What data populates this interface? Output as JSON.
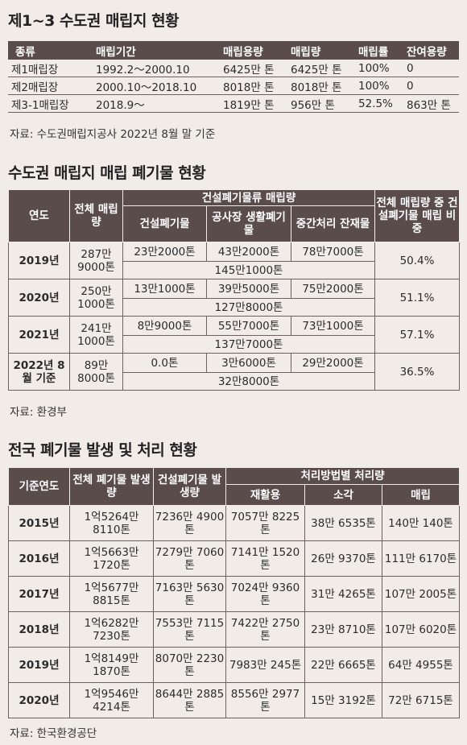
{
  "section1": {
    "title": "제1~3 수도권 매립지 현황",
    "headers": [
      "종류",
      "매립기간",
      "매립용량",
      "매립량",
      "매립률",
      "잔여용량"
    ],
    "rows": [
      [
        "제1매립장",
        "1992.2～2000.10",
        "6425만 톤",
        "6425만 톤",
        "100%",
        "0"
      ],
      [
        "제2매립장",
        "2000.10～2018.10",
        "8018만 톤",
        "8018만 톤",
        "100%",
        "0"
      ],
      [
        "제3-1매립장",
        "2018.9～",
        "1819만 톤",
        "956만 톤",
        "52.5%",
        "863만 톤"
      ]
    ],
    "source": "자료: 수도권매립지공사 2022년 8월 말 기준"
  },
  "section2": {
    "title": "수도권 매립지 매립 폐기물 현황",
    "headers": {
      "year": "연도",
      "total": "전체 매립량",
      "group": "건설폐기물류 매립량",
      "sub": [
        "건설폐기물",
        "공사장 생활폐기물",
        "중간처리 잔재물"
      ],
      "ratio": "전체 매립량 중 건설폐기물 매립 비중"
    },
    "rows": [
      {
        "year": "2019년",
        "total": "287만 9000톤",
        "c1": "23만2000톤",
        "c2": "43만2000톤",
        "c3": "78만7000톤",
        "sum": "145만1000톤",
        "ratio": "50.4%"
      },
      {
        "year": "2020년",
        "total": "250만 1000톤",
        "c1": "13만1000톤",
        "c2": "39만5000톤",
        "c3": "75만2000톤",
        "sum": "127만8000톤",
        "ratio": "51.1%"
      },
      {
        "year": "2021년",
        "total": "241만 1000톤",
        "c1": "8만9000톤",
        "c2": "55만7000톤",
        "c3": "73만1000톤",
        "sum": "137만7000톤",
        "ratio": "57.1%"
      },
      {
        "year": "2022년 8월 기준",
        "total": "89만 8000톤",
        "c1": "0.0톤",
        "c2": "3만6000톤",
        "c3": "29만2000톤",
        "sum": "32만8000톤",
        "ratio": "36.5%"
      }
    ],
    "source": "자료: 환경부"
  },
  "section3": {
    "title": "전국 폐기물 발생 및 처리 현황",
    "headers": {
      "year": "기준연도",
      "total": "전체 폐기물 발생량",
      "construction": "건설폐기물 발생량",
      "group": "처리방법별 처리량",
      "sub": [
        "재활용",
        "소각",
        "매립"
      ]
    },
    "rows": [
      {
        "year": "2015년",
        "total": "1억5264만 8110톤",
        "cons": "7236만 4900톤",
        "recycle": "7057만 8225톤",
        "burn": "38만 6535톤",
        "landfill": "140만 140톤"
      },
      {
        "year": "2016년",
        "total": "1억5663만 1720톤",
        "cons": "7279만 7060톤",
        "recycle": "7141만 1520톤",
        "burn": "26만 9370톤",
        "landfill": "111만 6170톤"
      },
      {
        "year": "2017년",
        "total": "1억5677만 8815톤",
        "cons": "7163만 5630톤",
        "recycle": "7024만 9360톤",
        "burn": "31만 4265톤",
        "landfill": "107만 2005톤"
      },
      {
        "year": "2018년",
        "total": "1억6282만 7230톤",
        "cons": "7553만 7115톤",
        "recycle": "7422만 2750톤",
        "burn": "23만 8710톤",
        "landfill": "107만 6020톤"
      },
      {
        "year": "2019년",
        "total": "1억8149만 1870톤",
        "cons": "8070만 2230톤",
        "recycle": "7983만 245톤",
        "burn": "22만 6665톤",
        "landfill": "64만 4955톤"
      },
      {
        "year": "2020년",
        "total": "1억9546만 4214톤",
        "cons": "8644만 2885톤",
        "recycle": "8556만 2977톤",
        "burn": "15만 3192톤",
        "landfill": "72만 6715톤"
      }
    ],
    "source": "자료: 한국환경공단"
  },
  "colors": {
    "background": "#f1ece8",
    "header": "#5b4c4c",
    "header_text": "#ffffff",
    "rule": "#6d6060"
  }
}
